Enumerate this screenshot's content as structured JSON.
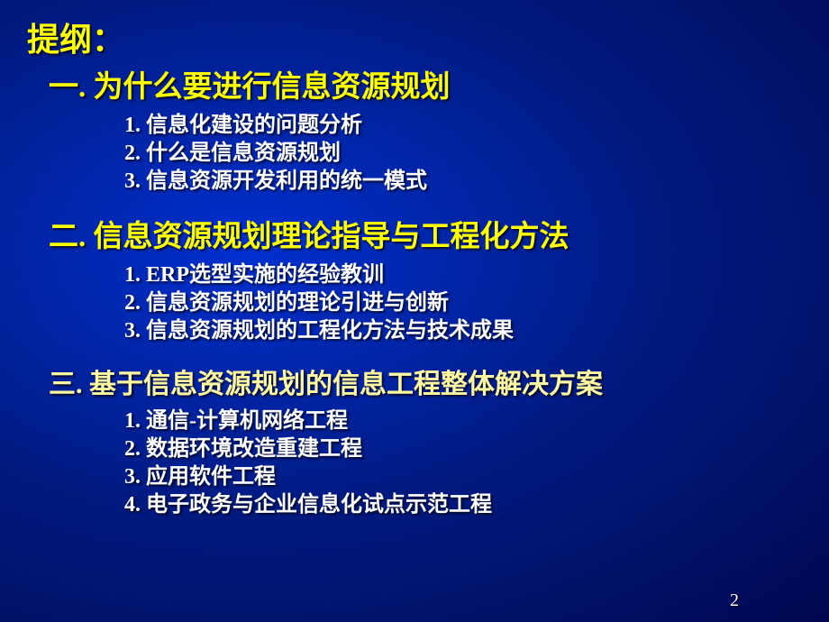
{
  "colors": {
    "title_color": "#ffff00",
    "heading_color": "#ffff00",
    "heading3_color": "#fff8a0",
    "subitem_color": "#ffffff",
    "page_number_color": "#ffffff"
  },
  "title": "提纲：",
  "sections": [
    {
      "heading": "一. 为什么要进行信息资源规划",
      "items": [
        "1. 信息化建设的问题分析",
        "2. 什么是信息资源规划",
        "3. 信息资源开发利用的统一模式"
      ]
    },
    {
      "heading": "二. 信息资源规划理论指导与工程化方法",
      "items": [
        "1. ERP选型实施的经验教训",
        "2. 信息资源规划的理论引进与创新",
        "3. 信息资源规划的工程化方法与技术成果"
      ]
    },
    {
      "heading": "三. 基于信息资源规划的信息工程整体解决方案",
      "items": [
        "1. 通信-计算机网络工程",
        "2. 数据环境改造重建工程",
        "3. 应用软件工程",
        "4. 电子政务与企业信息化试点示范工程"
      ]
    }
  ],
  "page_number": "2"
}
